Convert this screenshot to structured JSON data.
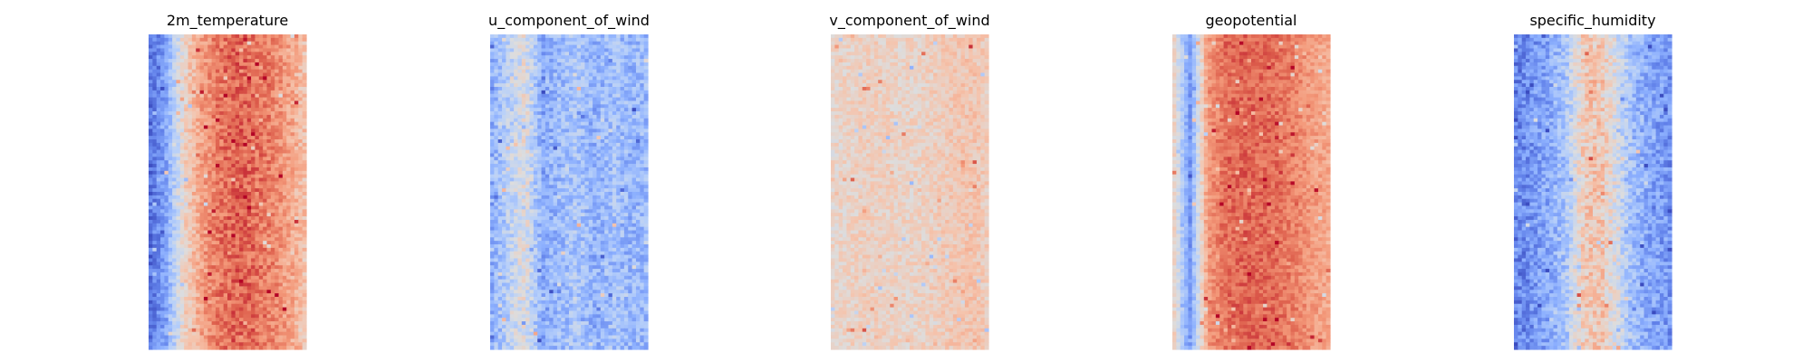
{
  "chart_data": [
    {
      "type": "heatmap",
      "title": "2m_temperature",
      "colormap": "coolwarm",
      "grid": false,
      "axes_visible": false,
      "approx_values": {
        "column_profile": [
          0.08,
          0.22,
          0.55,
          0.72,
          0.82,
          0.86,
          0.84,
          0.8,
          0.72,
          0.62
        ],
        "noise": 0.09
      }
    },
    {
      "type": "heatmap",
      "title": "u_component_of_wind",
      "colormap": "coolwarm",
      "grid": false,
      "axes_visible": false,
      "approx_values": {
        "column_profile": [
          0.25,
          0.38,
          0.5,
          0.24,
          0.3,
          0.34,
          0.26,
          0.32,
          0.28,
          0.3
        ],
        "noise": 0.11
      }
    },
    {
      "type": "heatmap",
      "title": "v_component_of_wind",
      "colormap": "coolwarm",
      "grid": false,
      "axes_visible": false,
      "approx_values": {
        "column_profile": [
          0.54,
          0.56,
          0.58,
          0.57,
          0.56,
          0.56,
          0.58,
          0.6,
          0.62,
          0.58
        ],
        "noise": 0.07
      }
    },
    {
      "type": "heatmap",
      "title": "geopotential",
      "colormap": "coolwarm",
      "grid": false,
      "axes_visible": false,
      "approx_values": {
        "column_profile": [
          0.6,
          0.18,
          0.74,
          0.84,
          0.86,
          0.85,
          0.84,
          0.8,
          0.74,
          0.7
        ],
        "noise": 0.07
      }
    },
    {
      "type": "heatmap",
      "title": "specific_humidity",
      "colormap": "coolwarm",
      "grid": false,
      "axes_visible": false,
      "approx_values": {
        "column_profile": [
          0.12,
          0.18,
          0.24,
          0.34,
          0.6,
          0.62,
          0.44,
          0.28,
          0.22,
          0.18
        ],
        "noise": 0.11
      }
    }
  ]
}
